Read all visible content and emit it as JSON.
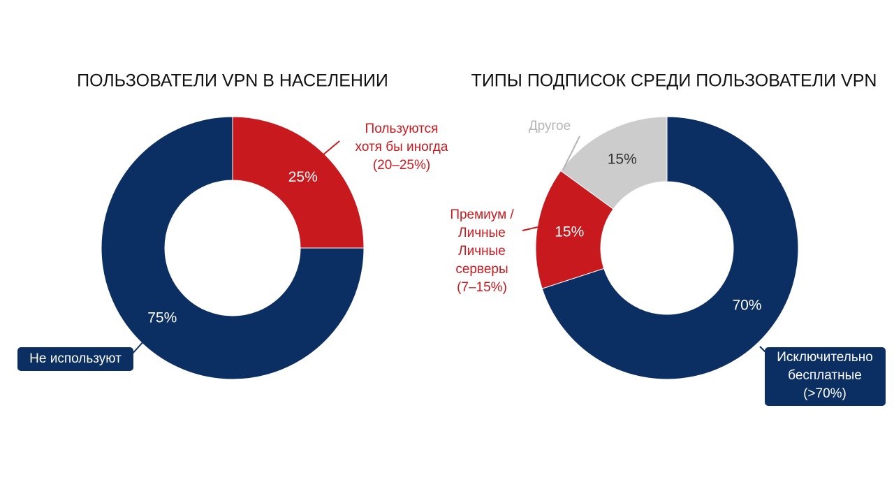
{
  "chart_data": [
    {
      "type": "pie",
      "title": "ПОЛЬЗОВАТЕЛИ VPN В НАСЕЛЕНИИ",
      "categories": [
        [
          "Пользуются",
          "хотя бы иногда",
          "(20–25%)"
        ],
        [
          "Не используют"
        ]
      ],
      "values": [
        25,
        75
      ],
      "value_labels": [
        "25%",
        "75%"
      ],
      "colors": [
        "#c8191e",
        "#0b2f63"
      ],
      "donut": true
    },
    {
      "type": "pie",
      "title": "ТИПЫ ПОДПИСОК СРЕДИ ПОЛЬЗОВАТЕЛИ VPN",
      "categories": [
        [
          "Исключительно",
          "бесплатные",
          "(>70%)"
        ],
        [
          "Премиум /",
          "Личные",
          "Личные",
          "серверы",
          "(7–15%)"
        ],
        [
          "Другое"
        ]
      ],
      "values": [
        70,
        15,
        15
      ],
      "value_labels": [
        "70%",
        "15%",
        "15%"
      ],
      "colors": [
        "#0b2f63",
        "#c8191e",
        "#cccccc"
      ],
      "donut": true
    }
  ]
}
